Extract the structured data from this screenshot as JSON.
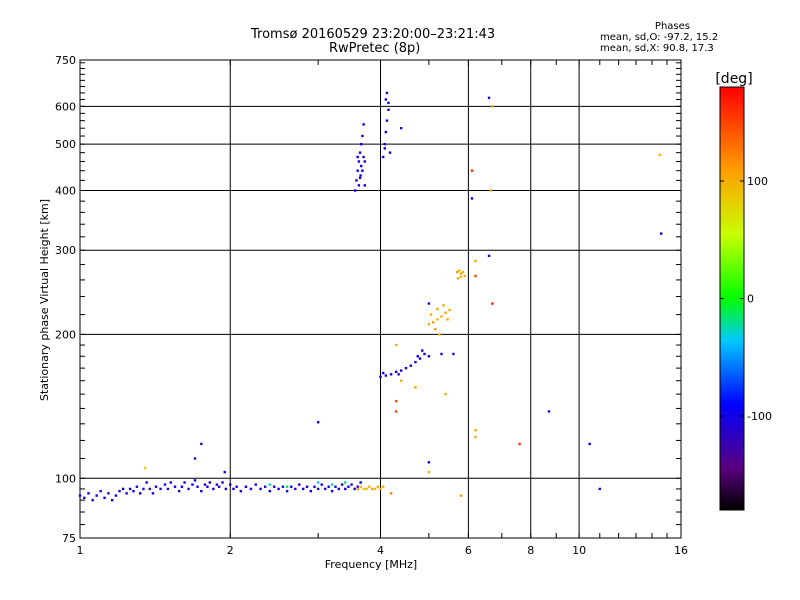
{
  "chart_data": {
    "type": "scatter",
    "title": "Tromsø 20160529 23:20:00–23:21:43",
    "subtitle": "RwPretec (8p)",
    "xlabel": "Frequency [MHz]",
    "ylabel": "Stationary phase Virtual Height [km]",
    "x_scale": "log",
    "y_scale": "log",
    "xlim": [
      1,
      16
    ],
    "ylim": [
      75,
      750
    ],
    "x_ticks": [
      "1",
      "2",
      "4",
      "6",
      "8",
      "10",
      "16"
    ],
    "x_tick_values": [
      1,
      2,
      4,
      6,
      8,
      10,
      16
    ],
    "y_ticks": [
      "75",
      "100",
      "200",
      "300",
      "400",
      "500",
      "600",
      "750"
    ],
    "y_tick_values": [
      75,
      100,
      200,
      300,
      400,
      500,
      600,
      750
    ],
    "grid": true,
    "legend": {
      "title": "Phases",
      "lines": [
        "mean, sd,O: -97.2, 15.2",
        "mean, sd,X:  90.8, 17.3"
      ],
      "placement": "top-right"
    },
    "colorbar": {
      "label": "[deg]",
      "range": [
        -180,
        180
      ],
      "ticks": [
        "100",
        "0",
        "-100"
      ],
      "tick_values": [
        100,
        0,
        -100
      ],
      "colormap": "rainbow"
    },
    "series": [
      {
        "name": "O",
        "points": [
          [
            1.0,
            92,
            -100
          ],
          [
            1.02,
            91,
            -110
          ],
          [
            1.04,
            93,
            -95
          ],
          [
            1.06,
            90,
            -120
          ],
          [
            1.08,
            92,
            -100
          ],
          [
            1.1,
            94,
            -105
          ],
          [
            1.12,
            91,
            -95
          ],
          [
            1.14,
            93,
            -110
          ],
          [
            1.16,
            90,
            -100
          ],
          [
            1.18,
            92,
            -90
          ],
          [
            1.2,
            94,
            -105
          ],
          [
            1.22,
            95,
            -100
          ],
          [
            1.24,
            93,
            -115
          ],
          [
            1.26,
            95,
            -95
          ],
          [
            1.28,
            94,
            -100
          ],
          [
            1.3,
            96,
            -110
          ],
          [
            1.32,
            93,
            -95
          ],
          [
            1.34,
            95,
            -105
          ],
          [
            1.36,
            98,
            -100
          ],
          [
            1.38,
            95,
            -120
          ],
          [
            1.4,
            93,
            -95
          ],
          [
            1.42,
            96,
            -100
          ],
          [
            1.45,
            95,
            -110
          ],
          [
            1.48,
            97,
            -95
          ],
          [
            1.5,
            95,
            -100
          ],
          [
            1.52,
            98,
            -105
          ],
          [
            1.55,
            96,
            -100
          ],
          [
            1.58,
            94,
            -115
          ],
          [
            1.6,
            96,
            -90
          ],
          [
            1.62,
            98,
            -100
          ],
          [
            1.65,
            95,
            -110
          ],
          [
            1.68,
            97,
            -100
          ],
          [
            1.7,
            99,
            -95
          ],
          [
            1.72,
            96,
            -105
          ],
          [
            1.75,
            94,
            -100
          ],
          [
            1.78,
            97,
            -110
          ],
          [
            1.8,
            96,
            -95
          ],
          [
            1.82,
            98,
            -100
          ],
          [
            1.85,
            95,
            -105
          ],
          [
            1.88,
            97,
            -100
          ],
          [
            1.9,
            96,
            -110
          ],
          [
            1.93,
            98,
            -95
          ],
          [
            1.96,
            95,
            -100
          ],
          [
            2.0,
            97,
            -105
          ],
          [
            2.03,
            95,
            -100
          ],
          [
            2.06,
            96,
            -110
          ],
          [
            2.1,
            94,
            -100
          ],
          [
            2.15,
            96,
            -95
          ],
          [
            2.2,
            95,
            -100
          ],
          [
            2.25,
            97,
            -105
          ],
          [
            2.3,
            95,
            -100
          ],
          [
            2.35,
            96,
            -110
          ],
          [
            2.4,
            94,
            -95
          ],
          [
            2.45,
            96,
            -100
          ],
          [
            2.5,
            95,
            -105
          ],
          [
            2.55,
            96,
            -100
          ],
          [
            2.6,
            94,
            -110
          ],
          [
            2.65,
            96,
            -95
          ],
          [
            2.7,
            95,
            -100
          ],
          [
            2.75,
            97,
            -105
          ],
          [
            2.8,
            95,
            -100
          ],
          [
            2.85,
            96,
            -110
          ],
          [
            2.9,
            94,
            -95
          ],
          [
            2.95,
            96,
            -100
          ],
          [
            3.0,
            95,
            -105
          ],
          [
            3.05,
            97,
            -100
          ],
          [
            3.1,
            95,
            -110
          ],
          [
            3.15,
            96,
            -95
          ],
          [
            3.2,
            94,
            -100
          ],
          [
            3.25,
            96,
            -105
          ],
          [
            3.3,
            95,
            -100
          ],
          [
            3.35,
            97,
            -110
          ],
          [
            3.4,
            95,
            -95
          ],
          [
            3.45,
            96,
            -100
          ],
          [
            3.5,
            97,
            -105
          ],
          [
            3.55,
            95,
            -100
          ],
          [
            3.6,
            96,
            -110
          ],
          [
            3.65,
            98,
            -95
          ],
          [
            1.7,
            110,
            -100
          ],
          [
            1.75,
            118,
            -110
          ],
          [
            1.95,
            103,
            -100
          ],
          [
            3.0,
            131,
            -95
          ],
          [
            3.56,
            400,
            -100
          ],
          [
            3.58,
            420,
            -110
          ],
          [
            3.6,
            440,
            -95
          ],
          [
            3.62,
            460,
            -100
          ],
          [
            3.64,
            480,
            -105
          ],
          [
            3.66,
            500,
            -100
          ],
          [
            3.68,
            520,
            -110
          ],
          [
            3.7,
            550,
            -95
          ],
          [
            3.65,
            430,
            -100
          ],
          [
            3.62,
            410,
            -105
          ],
          [
            3.66,
            450,
            -100
          ],
          [
            3.7,
            470,
            -110
          ],
          [
            3.68,
            440,
            -95
          ],
          [
            3.6,
            470,
            -100
          ],
          [
            3.72,
            460,
            -105
          ],
          [
            3.72,
            410,
            -100
          ],
          [
            3.64,
            425,
            -110
          ],
          [
            4.05,
            470,
            -100
          ],
          [
            4.08,
            500,
            -110
          ],
          [
            4.1,
            530,
            -95
          ],
          [
            4.12,
            560,
            -100
          ],
          [
            4.15,
            590,
            -105
          ],
          [
            4.1,
            620,
            -100
          ],
          [
            4.12,
            640,
            -110
          ],
          [
            4.15,
            610,
            -95
          ],
          [
            4.08,
            490,
            -100
          ],
          [
            4.18,
            480,
            -105
          ],
          [
            4.4,
            540,
            -100
          ],
          [
            6.6,
            625,
            -100
          ],
          [
            4.0,
            163,
            -100
          ],
          [
            4.1,
            164,
            -110
          ],
          [
            4.2,
            165,
            -95
          ],
          [
            4.3,
            167,
            -100
          ],
          [
            4.4,
            168,
            -105
          ],
          [
            4.5,
            170,
            -100
          ],
          [
            4.6,
            172,
            -110
          ],
          [
            4.7,
            175,
            -95
          ],
          [
            4.8,
            178,
            -100
          ],
          [
            4.9,
            182,
            -105
          ],
          [
            5.0,
            180,
            -100
          ],
          [
            4.85,
            185,
            -110
          ],
          [
            4.75,
            180,
            -95
          ],
          [
            4.05,
            166,
            -100
          ],
          [
            4.35,
            165,
            -105
          ],
          [
            5.0,
            232,
            -100
          ],
          [
            5.3,
            182,
            -110
          ],
          [
            5.6,
            182,
            -100
          ],
          [
            6.1,
            385,
            -100
          ],
          [
            6.6,
            292,
            -100
          ],
          [
            5.0,
            108,
            -100
          ],
          [
            8.7,
            138,
            -100
          ],
          [
            10.5,
            118,
            -100
          ],
          [
            11.0,
            95,
            -95
          ],
          [
            14.6,
            325,
            -100
          ]
        ]
      },
      {
        "name": "X",
        "points": [
          [
            3.6,
            95,
            110
          ],
          [
            3.65,
            96,
            100
          ],
          [
            3.7,
            95,
            90
          ],
          [
            3.75,
            95,
            105
          ],
          [
            3.8,
            96,
            100
          ],
          [
            3.85,
            95,
            110
          ],
          [
            3.9,
            95,
            95
          ],
          [
            3.95,
            96,
            100
          ],
          [
            4.0,
            95,
            105
          ],
          [
            4.05,
            96,
            100
          ],
          [
            5.0,
            210,
            100
          ],
          [
            5.1,
            212,
            110
          ],
          [
            5.2,
            215,
            95
          ],
          [
            5.3,
            218,
            100
          ],
          [
            5.4,
            222,
            105
          ],
          [
            5.5,
            225,
            100
          ],
          [
            5.15,
            205,
            110
          ],
          [
            5.25,
            200,
            95
          ],
          [
            5.35,
            230,
            100
          ],
          [
            5.45,
            215,
            105
          ],
          [
            5.05,
            220,
            100
          ],
          [
            5.2,
            226,
            110
          ],
          [
            5.7,
            270,
            110
          ],
          [
            5.75,
            272,
            100
          ],
          [
            5.8,
            268,
            105
          ],
          [
            5.85,
            270,
            100
          ],
          [
            5.72,
            262,
            110
          ],
          [
            5.8,
            264,
            95
          ],
          [
            5.9,
            265,
            100
          ],
          [
            4.3,
            190,
            100
          ],
          [
            4.4,
            160,
            100
          ],
          [
            4.7,
            155,
            110
          ],
          [
            5.4,
            150,
            100
          ],
          [
            5.0,
            103,
            100
          ],
          [
            6.7,
            600,
            100
          ],
          [
            6.65,
            400,
            100
          ],
          [
            6.2,
            285,
            100
          ],
          [
            14.5,
            475,
            100
          ],
          [
            4.2,
            93,
            120
          ],
          [
            6.2,
            122,
            100
          ],
          [
            6.2,
            126,
            105
          ],
          [
            5.8,
            92,
            110
          ],
          [
            4.3,
            145,
            150
          ]
        ]
      },
      {
        "name": "other",
        "points": [
          [
            3.4,
            98,
            -20
          ],
          [
            3.2,
            97,
            -30
          ],
          [
            3.0,
            98,
            -40
          ],
          [
            2.6,
            96,
            -10
          ],
          [
            2.4,
            97,
            -25
          ],
          [
            6.1,
            440,
            160
          ],
          [
            6.2,
            265,
            150
          ],
          [
            6.7,
            232,
            165
          ],
          [
            7.6,
            118,
            160
          ],
          [
            4.3,
            138,
            150
          ],
          [
            1.35,
            105,
            80
          ]
        ]
      }
    ]
  }
}
